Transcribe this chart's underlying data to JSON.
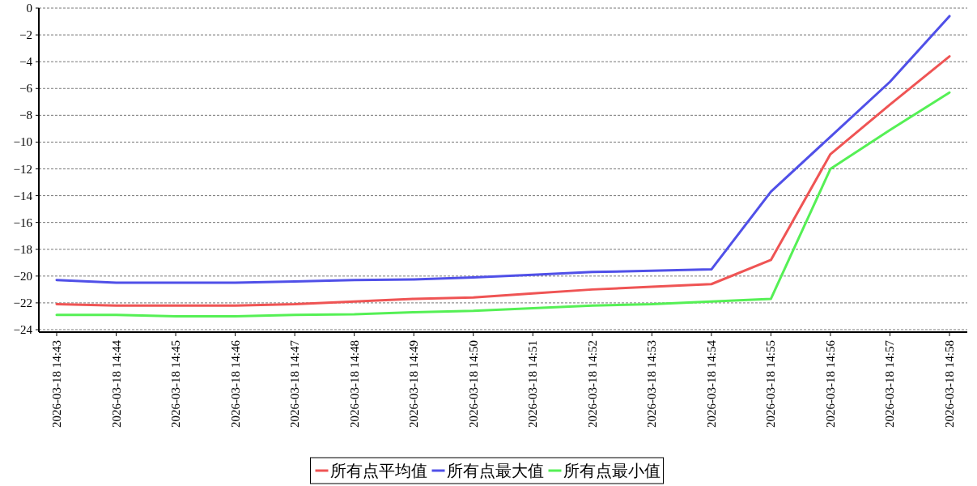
{
  "chart_data": {
    "type": "line",
    "categories": [
      "2026-03-18 14:43",
      "2026-03-18 14:44",
      "2026-03-18 14:45",
      "2026-03-18 14:46",
      "2026-03-18 14:47",
      "2026-03-18 14:48",
      "2026-03-18 14:49",
      "2026-03-18 14:50",
      "2026-03-18 14:51",
      "2026-03-18 14:52",
      "2026-03-18 14:53",
      "2026-03-18 14:54",
      "2026-03-18 14:55",
      "2026-03-18 14:56",
      "2026-03-18 14:57",
      "2026-03-18 14:58"
    ],
    "series": [
      {
        "name": "所有点平均值",
        "color": "#ef5454",
        "values": [
          -22.1,
          -22.2,
          -22.2,
          -22.2,
          -22.1,
          -21.9,
          -21.7,
          -21.6,
          -21.3,
          -21.0,
          -20.8,
          -20.6,
          -18.8,
          -10.9,
          -7.2,
          -3.6
        ]
      },
      {
        "name": "所有点最大值",
        "color": "#5050e8",
        "values": [
          -20.3,
          -20.5,
          -20.5,
          -20.5,
          -20.4,
          -20.3,
          -20.25,
          -20.1,
          -19.9,
          -19.7,
          -19.6,
          -19.5,
          -13.7,
          -9.6,
          -5.5,
          -0.6
        ]
      },
      {
        "name": "所有点最小值",
        "color": "#55f055",
        "values": [
          -22.9,
          -22.9,
          -23.0,
          -23.0,
          -22.9,
          -22.85,
          -22.7,
          -22.6,
          -22.4,
          -22.2,
          -22.1,
          -21.9,
          -21.7,
          -12.0,
          -9.1,
          -6.3
        ]
      }
    ],
    "ylim": [
      -24,
      0
    ],
    "yticks": [
      -24,
      -22,
      -20,
      -18,
      -16,
      -14,
      -12,
      -10,
      -8,
      -6,
      -4,
      -2,
      0
    ],
    "grid": "y",
    "legend": "bottom",
    "marker": "none",
    "line_style": "solid"
  }
}
